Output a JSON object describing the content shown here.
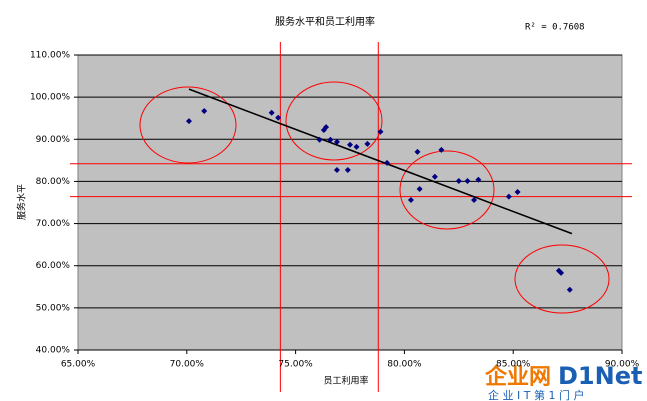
{
  "chart_data": {
    "type": "scatter",
    "title": "服务水平和员工利用率",
    "annotation": "R² = 0.7608",
    "x_label": "员工利用率",
    "y_label": "服务水平",
    "x": [
      70.1,
      70.8,
      73.9,
      74.2,
      76.1,
      76.3,
      76.4,
      76.6,
      76.9,
      76.9,
      77.4,
      77.5,
      77.8,
      78.3,
      78.9,
      79.2,
      80.3,
      80.6,
      80.7,
      81.4,
      81.7,
      82.5,
      82.9,
      83.2,
      83.4,
      84.8,
      85.2,
      87.1,
      87.2,
      87.6
    ],
    "values": [
      94.3,
      96.7,
      96.3,
      95.1,
      89.9,
      92.2,
      92.9,
      89.9,
      89.4,
      82.7,
      82.7,
      88.7,
      88.2,
      88.9,
      91.8,
      84.4,
      75.6,
      87.0,
      78.2,
      81.1,
      87.5,
      80.1,
      80.1,
      75.6,
      80.4,
      76.4,
      77.5,
      58.8,
      58.3,
      54.3
    ],
    "color": "#000080",
    "trendline": {
      "x": [
        70.1,
        87.7
      ],
      "y": [
        101.9,
        67.6
      ],
      "color": "#000000"
    },
    "reference_lines": {
      "x": [
        74.3,
        78.8
      ],
      "y": [
        84.2,
        76.4
      ],
      "color": "#ff0000"
    },
    "xlim": [
      65,
      90
    ],
    "xticks": [
      {
        "value": 65,
        "label": "65.00%"
      },
      {
        "value": 70,
        "label": "70.00%"
      },
      {
        "value": 75,
        "label": "75.00%"
      },
      {
        "value": 80,
        "label": "80.00%"
      },
      {
        "value": 85,
        "label": "85.00%"
      },
      {
        "value": 90,
        "label": "90.00%"
      }
    ],
    "ylim": [
      40,
      110
    ],
    "yticks": [
      {
        "value": 40,
        "label": "40.00%"
      },
      {
        "value": 50,
        "label": "50.00%"
      },
      {
        "value": 60,
        "label": "60.00%"
      },
      {
        "value": 70,
        "label": "70.00%"
      },
      {
        "value": 80,
        "label": "80.00%"
      },
      {
        "value": 90,
        "label": "90.00%"
      },
      {
        "value": 100,
        "label": "100.00%"
      },
      {
        "value": 110,
        "label": "110.00%"
      }
    ],
    "grid": true,
    "watermark": {
      "brand": "企业网",
      "logo": "D1Net",
      "slogan": "企 业 I T 第 1 门 户"
    }
  }
}
